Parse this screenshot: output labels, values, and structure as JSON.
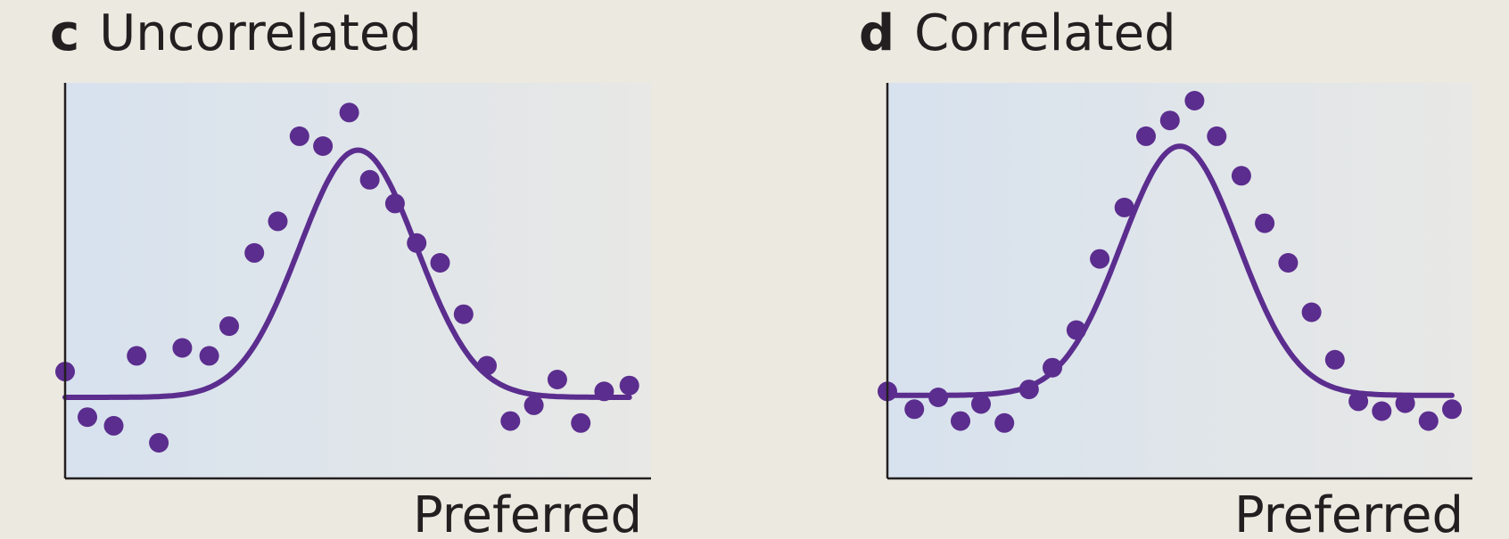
{
  "panels": [
    {
      "letter": "c",
      "title": "Uncorrelated"
    },
    {
      "letter": "d",
      "title": "Correlated"
    }
  ],
  "colors": {
    "series": "#5b2d8e",
    "background": "#ece9e1",
    "plot_fill_left": "#d7e2ee",
    "plot_fill_right": "#e8e8e6",
    "axis": "#231f20"
  },
  "chart_data": [
    {
      "type": "scatter",
      "title": "Uncorrelated",
      "xlabel": "Preferred",
      "ylabel": "",
      "xlim": [
        0,
        1
      ],
      "ylim": [
        0,
        1
      ],
      "grid": false,
      "axis_ticks": false,
      "fit_curve": {
        "baseline": 0.205,
        "peak": 0.83,
        "center": 0.5,
        "width": 0.1
      },
      "points": {
        "x": [
          0.0,
          0.038,
          0.083,
          0.122,
          0.16,
          0.2,
          0.246,
          0.28,
          0.323,
          0.363,
          0.4,
          0.44,
          0.485,
          0.52,
          0.563,
          0.6,
          0.64,
          0.68,
          0.72,
          0.76,
          0.8,
          0.84,
          0.88,
          0.92,
          0.963
        ],
        "y": [
          0.27,
          0.155,
          0.133,
          0.31,
          0.09,
          0.33,
          0.31,
          0.385,
          0.57,
          0.65,
          0.865,
          0.84,
          0.925,
          0.755,
          0.695,
          0.595,
          0.545,
          0.415,
          0.285,
          0.145,
          0.185,
          0.25,
          0.14,
          0.22,
          0.235
        ]
      }
    },
    {
      "type": "scatter",
      "title": "Correlated",
      "xlabel": "Preferred",
      "ylabel": "",
      "xlim": [
        0,
        1
      ],
      "ylim": [
        0,
        1
      ],
      "grid": false,
      "axis_ticks": false,
      "fit_curve": {
        "baseline": 0.21,
        "peak": 0.84,
        "center": 0.5,
        "width": 0.1
      },
      "points": {
        "x": [
          0.0,
          0.046,
          0.087,
          0.125,
          0.16,
          0.2,
          0.242,
          0.282,
          0.323,
          0.363,
          0.405,
          0.442,
          0.483,
          0.525,
          0.563,
          0.605,
          0.645,
          0.685,
          0.725,
          0.765,
          0.805,
          0.845,
          0.885,
          0.925,
          0.965
        ],
        "y": [
          0.22,
          0.175,
          0.205,
          0.145,
          0.188,
          0.14,
          0.225,
          0.28,
          0.375,
          0.555,
          0.685,
          0.865,
          0.905,
          0.955,
          0.865,
          0.765,
          0.645,
          0.545,
          0.42,
          0.3,
          0.195,
          0.17,
          0.19,
          0.145,
          0.175
        ]
      }
    }
  ]
}
